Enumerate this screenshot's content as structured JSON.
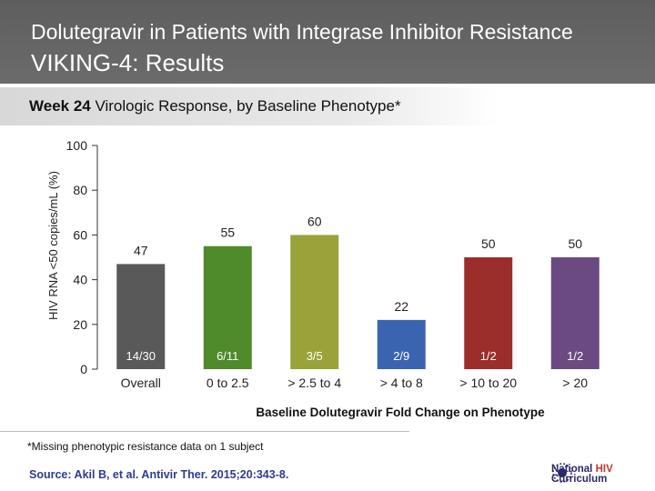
{
  "header": {
    "title_line1": "Dolutegravir in Patients with Integrase Inhibitor Resistance",
    "title_line2": "VIKING-4: Results"
  },
  "subtitle": {
    "bold": "Week 24",
    "rest": " Virologic Response, by Baseline Phenotype*"
  },
  "chart_data": {
    "type": "bar",
    "categories": [
      "Overall",
      "0 to 2.5",
      "> 2.5 to 4",
      "> 4 to 8",
      "> 10 to 20",
      "> 20"
    ],
    "values": [
      47,
      55,
      60,
      22,
      50,
      50
    ],
    "fractions": [
      "14/30",
      "6/11",
      "3/5",
      "2/9",
      "1/2",
      "1/2"
    ],
    "colors": [
      "#595959",
      "#4f8a2b",
      "#9aa23a",
      "#3b64b0",
      "#9b2e2a",
      "#6a4a80"
    ],
    "ylabel": "HIV RNA <50 copies/mL (%)",
    "xlabel": "Baseline Dolutegravir Fold Change on Phenotype",
    "ylim": [
      0,
      100
    ],
    "yticks": [
      0,
      20,
      40,
      60,
      80,
      100
    ]
  },
  "footnote": "*Missing phenotypic resistance data on 1 subject",
  "source": "Source: Akil B, et al. Antivir Ther. 2015;20:343-8.",
  "logo": {
    "line1": "National ",
    "line1_accent": "HIV",
    "line2": "Curriculum"
  }
}
